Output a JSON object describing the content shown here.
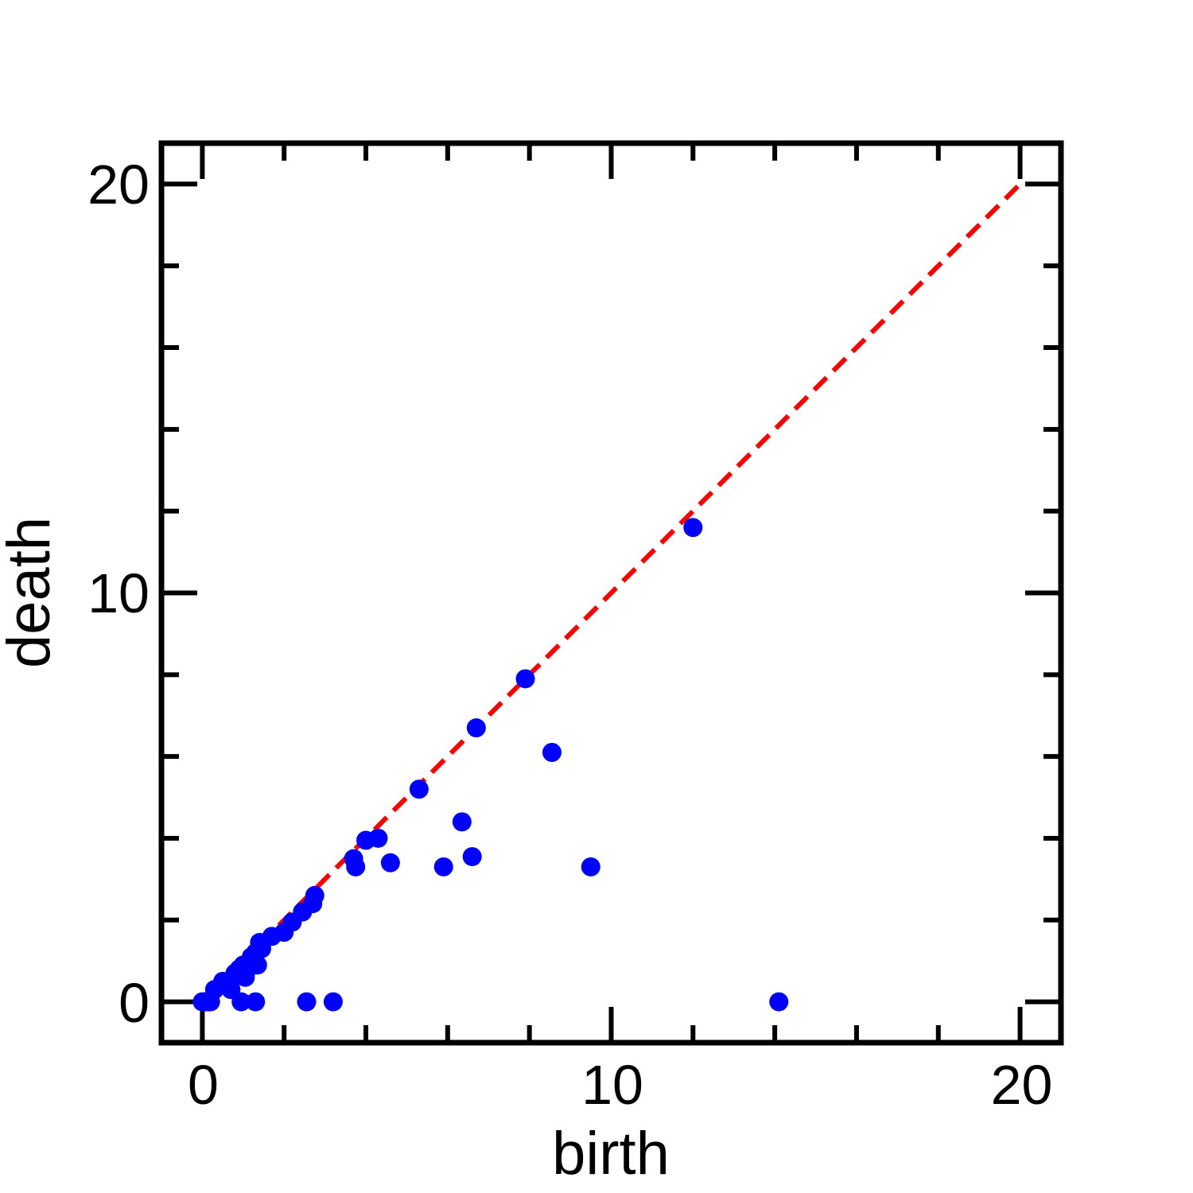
{
  "chart_data": {
    "type": "scatter",
    "title": "",
    "xlabel": "birth",
    "ylabel": "death",
    "xlim": [
      -1,
      21
    ],
    "ylim": [
      -1,
      21
    ],
    "xticks": [
      0,
      10,
      20
    ],
    "yticks": [
      0,
      10,
      20
    ],
    "xtick_labels": [
      "0",
      "10",
      "20"
    ],
    "ytick_labels": [
      "0",
      "10",
      "20"
    ],
    "minor_tick_step": 2,
    "grid": false,
    "diagonal": {
      "from": [
        0,
        0
      ],
      "to": [
        20,
        20
      ],
      "color": "#ff0000",
      "style": "dashed"
    },
    "point_color": "#0000ff",
    "points": [
      {
        "x": 0.0,
        "y": 0.0
      },
      {
        "x": 0.05,
        "y": 0.0
      },
      {
        "x": 0.1,
        "y": 0.0
      },
      {
        "x": 0.15,
        "y": 0.0
      },
      {
        "x": 0.2,
        "y": 0.0
      },
      {
        "x": 0.3,
        "y": 0.3
      },
      {
        "x": 0.5,
        "y": 0.5
      },
      {
        "x": 0.6,
        "y": 0.4
      },
      {
        "x": 0.7,
        "y": 0.3
      },
      {
        "x": 0.8,
        "y": 0.7
      },
      {
        "x": 0.9,
        "y": 0.8
      },
      {
        "x": 1.0,
        "y": 0.9
      },
      {
        "x": 1.05,
        "y": 0.6
      },
      {
        "x": 1.1,
        "y": 0.8
      },
      {
        "x": 1.2,
        "y": 1.1
      },
      {
        "x": 1.3,
        "y": 1.2
      },
      {
        "x": 1.35,
        "y": 0.9
      },
      {
        "x": 1.45,
        "y": 1.3
      },
      {
        "x": 1.4,
        "y": 1.45
      },
      {
        "x": 1.7,
        "y": 1.6
      },
      {
        "x": 2.0,
        "y": 1.7
      },
      {
        "x": 2.2,
        "y": 1.95
      },
      {
        "x": 2.45,
        "y": 2.2
      },
      {
        "x": 2.7,
        "y": 2.4
      },
      {
        "x": 2.75,
        "y": 2.6
      },
      {
        "x": 0.95,
        "y": 0.0
      },
      {
        "x": 1.3,
        "y": 0.0
      },
      {
        "x": 2.55,
        "y": 0.0
      },
      {
        "x": 3.2,
        "y": 0.0
      },
      {
        "x": 3.7,
        "y": 3.5
      },
      {
        "x": 3.75,
        "y": 3.3
      },
      {
        "x": 4.0,
        "y": 3.95
      },
      {
        "x": 4.3,
        "y": 4.0
      },
      {
        "x": 4.6,
        "y": 3.4
      },
      {
        "x": 5.3,
        "y": 5.2
      },
      {
        "x": 5.9,
        "y": 3.3
      },
      {
        "x": 6.35,
        "y": 4.4
      },
      {
        "x": 6.6,
        "y": 3.55
      },
      {
        "x": 6.7,
        "y": 6.7
      },
      {
        "x": 7.9,
        "y": 7.9
      },
      {
        "x": 8.55,
        "y": 6.1
      },
      {
        "x": 9.5,
        "y": 3.3
      },
      {
        "x": 12.0,
        "y": 11.6
      },
      {
        "x": 14.1,
        "y": 0.0
      }
    ]
  }
}
